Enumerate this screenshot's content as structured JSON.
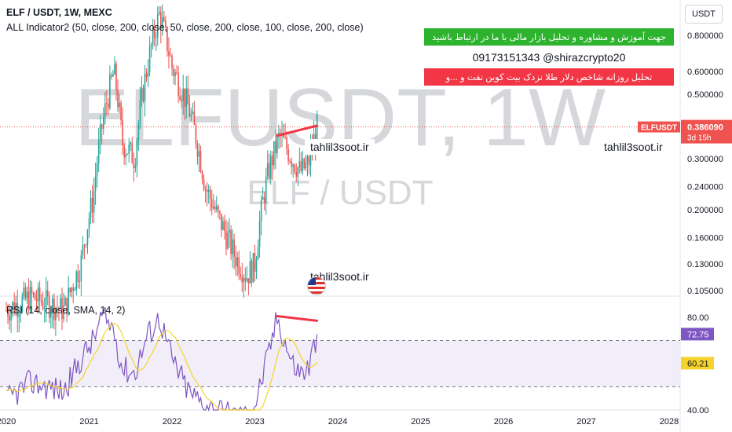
{
  "legend": {
    "main": "ELF / USDT, 1W, MEXC",
    "indicator": "ALL Indicator2 (50, close, 200, close, 50, close, 200, close, 100, close, 200, close)",
    "rsi": "RSI (14, close, SMA, 14, 2)"
  },
  "watermark": {
    "symbol": "ELFUSDT, 1W",
    "pair": "ELF / USDT"
  },
  "currency": "USDT",
  "price_tag": {
    "symbol": "ELFUSDT",
    "price": "0.386090",
    "countdown": "3d 15h"
  },
  "rsi_tags": {
    "rsi": "72.75",
    "sma": "60.21"
  },
  "ads": {
    "green": "جهت آموزش و مشاوره و تحلیل بازار مالی با ما در ارتباط باشید",
    "phone": "09173151343  @shirazcrypto20",
    "red": "تحلیل روزانه شاخص دلار طلا نزدک بیت کوین نفت و ...و"
  },
  "site_labels": [
    "tahlil3soot.ir",
    "tahlil3soot.ir",
    "tahlil3soot.ir"
  ],
  "colors": {
    "up": "#26a69a",
    "down": "#ef5350",
    "rsi": "#7e57c2",
    "rsi_sma": "#f5d32a",
    "divergence": "#f23645",
    "price_line": "#ef5350",
    "rsi_band": "#ede7f6"
  },
  "chart_data": {
    "type": "candlestick",
    "price_axis": {
      "scale": "log",
      "ticks": [
        0.8,
        0.6,
        0.5,
        0.3,
        0.24,
        0.2,
        0.16,
        0.13,
        0.105
      ],
      "tick_labels": [
        "0.800000",
        "0.600000",
        "0.500000",
        "0.300000",
        "0.240000",
        "0.200000",
        "0.160000",
        "0.130000",
        "0.105000"
      ],
      "range": [
        0.1,
        1.0
      ]
    },
    "time_axis": {
      "labels": [
        "2020",
        "2021",
        "2022",
        "2023",
        "2024",
        "2025",
        "2026",
        "2027",
        "2028"
      ],
      "range": [
        2020.0,
        2028.0
      ]
    },
    "price_anchors": [
      [
        2020.0,
        0.09
      ],
      [
        2020.3,
        0.1
      ],
      [
        2020.7,
        0.09
      ],
      [
        2020.9,
        0.13
      ],
      [
        2021.05,
        0.22
      ],
      [
        2021.15,
        0.38
      ],
      [
        2021.3,
        0.6
      ],
      [
        2021.4,
        0.34
      ],
      [
        2021.55,
        0.3
      ],
      [
        2021.7,
        0.62
      ],
      [
        2021.85,
        0.95
      ],
      [
        2022.0,
        0.62
      ],
      [
        2022.2,
        0.45
      ],
      [
        2022.4,
        0.24
      ],
      [
        2022.55,
        0.19
      ],
      [
        2022.75,
        0.14
      ],
      [
        2022.9,
        0.118
      ],
      [
        2023.0,
        0.13
      ],
      [
        2023.15,
        0.26
      ],
      [
        2023.3,
        0.36
      ],
      [
        2023.45,
        0.3
      ],
      [
        2023.55,
        0.27
      ],
      [
        2023.65,
        0.29
      ],
      [
        2023.75,
        0.386
      ]
    ],
    "last_price": 0.38609,
    "price_divergence_line": [
      [
        2023.27,
        0.36
      ],
      [
        2023.75,
        0.39
      ]
    ],
    "rsi": {
      "axis_ticks": [
        80,
        40
      ],
      "band": [
        50,
        70
      ],
      "range": [
        38,
        85
      ],
      "anchors": [
        [
          2020.0,
          44
        ],
        [
          2020.3,
          52
        ],
        [
          2020.7,
          48
        ],
        [
          2020.9,
          62
        ],
        [
          2021.05,
          70
        ],
        [
          2021.15,
          80
        ],
        [
          2021.3,
          75
        ],
        [
          2021.4,
          58
        ],
        [
          2021.55,
          56
        ],
        [
          2021.7,
          72
        ],
        [
          2021.85,
          80
        ],
        [
          2022.0,
          62
        ],
        [
          2022.2,
          48
        ],
        [
          2022.4,
          42
        ],
        [
          2022.55,
          40
        ],
        [
          2022.75,
          38
        ],
        [
          2022.9,
          37
        ],
        [
          2023.0,
          42
        ],
        [
          2023.15,
          62
        ],
        [
          2023.27,
          80
        ],
        [
          2023.45,
          60
        ],
        [
          2023.55,
          56
        ],
        [
          2023.65,
          58
        ],
        [
          2023.75,
          72.75
        ]
      ],
      "last_value": 72.75,
      "sma_last": 60.21,
      "divergence_line": [
        [
          2023.27,
          80.5
        ],
        [
          2023.75,
          78.5
        ]
      ]
    }
  }
}
